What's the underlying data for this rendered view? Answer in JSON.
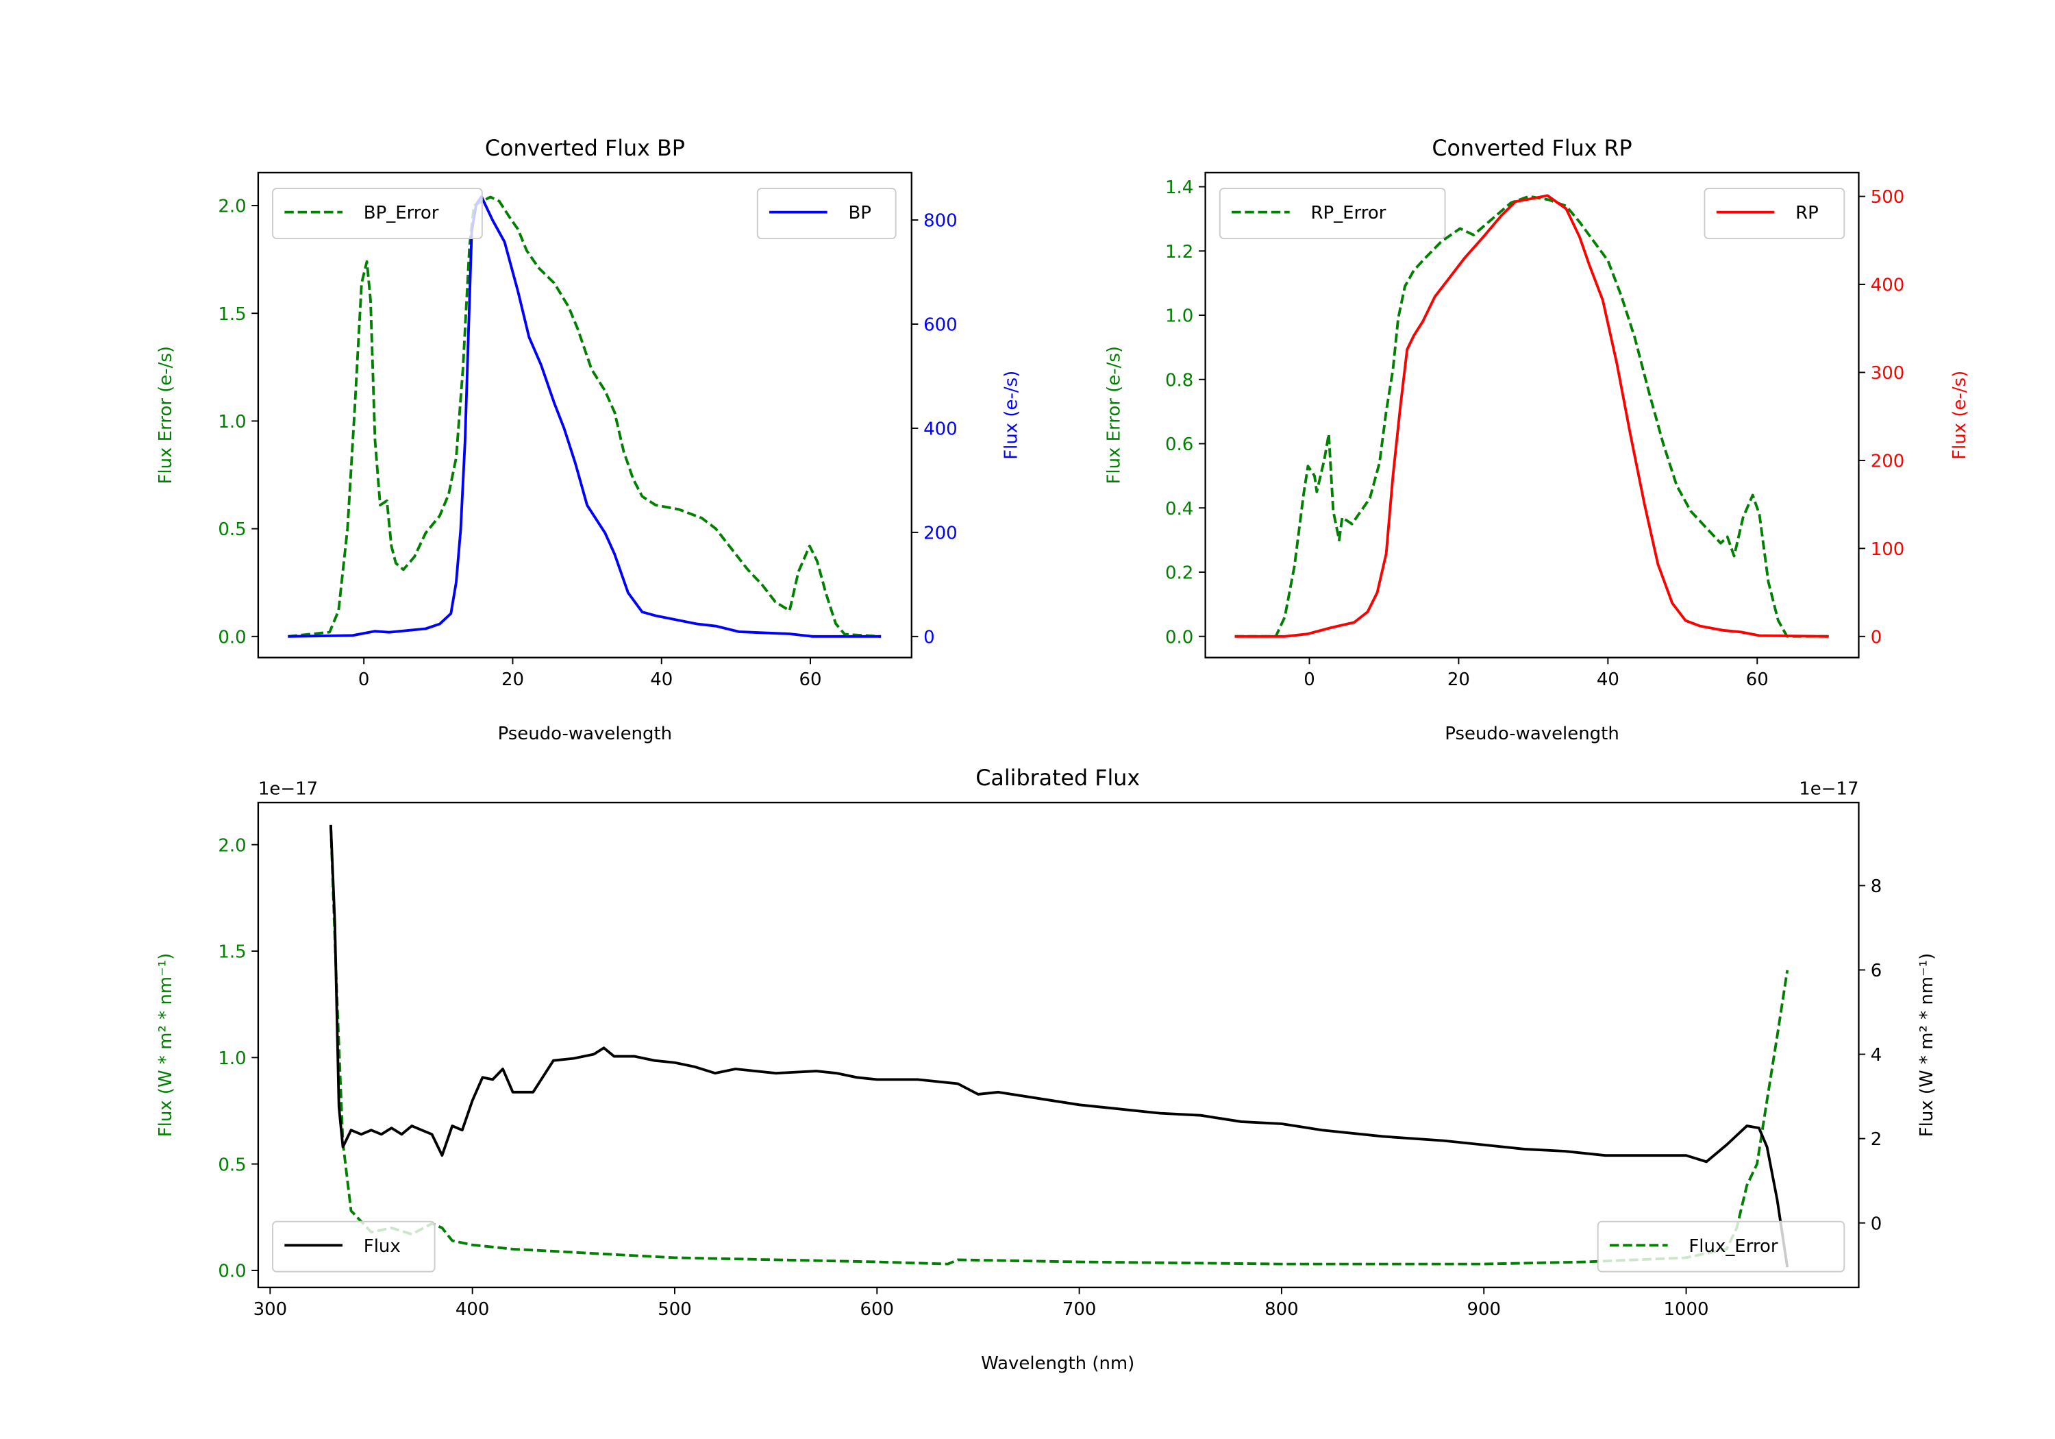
{
  "colors": {
    "green": "#008000",
    "blue": "#0000ff",
    "red": "#ff0000",
    "black": "#000000"
  },
  "chart_data": [
    {
      "id": "bp",
      "type": "line",
      "title": "Converted Flux BP",
      "xlabel": "Pseudo-wavelength",
      "ylabel_left": "Flux Error (e-/s)",
      "ylabel_right": "Flux (e-/s)",
      "xlim": [
        -14.2,
        73.6
      ],
      "ylim_left": [
        -0.098,
        2.153
      ],
      "ylim_right": [
        -40.5,
        891
      ],
      "xticks": [
        {
          "v": 0,
          "label": "0"
        },
        {
          "v": 20,
          "label": "20"
        },
        {
          "v": 40,
          "label": "40"
        },
        {
          "v": 60,
          "label": "60"
        }
      ],
      "yticks_left": [
        {
          "v": 0,
          "label": "0.0"
        },
        {
          "v": 0.5,
          "label": "0.5"
        },
        {
          "v": 1.0,
          "label": "1.0"
        },
        {
          "v": 1.5,
          "label": "1.5"
        },
        {
          "v": 2.0,
          "label": "2.0"
        }
      ],
      "yticks_right": [
        {
          "v": 0,
          "label": "0"
        },
        {
          "v": 200,
          "label": "200"
        },
        {
          "v": 400,
          "label": "400"
        },
        {
          "v": 600,
          "label": "600"
        },
        {
          "v": 800,
          "label": "800"
        }
      ],
      "left_color": "#008000",
      "right_color": "#0000ff",
      "legend_left": {
        "label": "BP_Error",
        "placement": "upper-left"
      },
      "legend_right": {
        "label": "BP",
        "placement": "upper-right"
      },
      "series": [
        {
          "name": "BP_Error",
          "axis": "left",
          "style": "dashed",
          "color": "#008000",
          "x": [
            -10.2,
            -4.6,
            -3.4,
            -2.2,
            -1.2,
            -0.3,
            0.4,
            0.9,
            1.5,
            2.2,
            3.1,
            3.7,
            4.3,
            5.3,
            6.8,
            8.3,
            10.2,
            11.4,
            12.4,
            13.3,
            14.2,
            14.8,
            17,
            18.2,
            19.5,
            20.7,
            21.9,
            23.5,
            25.6,
            27.5,
            28.7,
            30.6,
            32.4,
            33.7,
            34.9,
            36.2,
            37.4,
            39.2,
            42.3,
            45.4,
            47.3,
            49.1,
            51.6,
            53.5,
            55.3,
            57.2,
            58.4,
            59.9,
            60.9,
            62.1,
            63.4,
            64.6,
            69.5
          ],
          "y": [
            0,
            0.02,
            0.12,
            0.5,
            1.07,
            1.64,
            1.74,
            1.56,
            0.91,
            0.61,
            0.63,
            0.42,
            0.34,
            0.31,
            0.37,
            0.48,
            0.56,
            0.66,
            0.83,
            1.24,
            1.81,
            2.0,
            2.04,
            2.02,
            1.95,
            1.89,
            1.79,
            1.71,
            1.64,
            1.53,
            1.43,
            1.24,
            1.14,
            1.04,
            0.86,
            0.73,
            0.65,
            0.61,
            0.59,
            0.55,
            0.5,
            0.42,
            0.31,
            0.24,
            0.16,
            0.12,
            0.3,
            0.42,
            0.35,
            0.2,
            0.06,
            0.01,
            0
          ]
        },
        {
          "name": "BP",
          "axis": "right",
          "style": "solid",
          "color": "#0000ff",
          "x": [
            -10.2,
            -1.5,
            1.5,
            3.4,
            8.3,
            10.2,
            11.7,
            12.4,
            13,
            13.6,
            14.5,
            15.1,
            15.8,
            17.3,
            18.9,
            20.7,
            22.2,
            23.8,
            25.6,
            26.9,
            28.4,
            30,
            32.4,
            33.7,
            35.5,
            37.4,
            39.2,
            44.8,
            47.3,
            50.4,
            57.2,
            60.3,
            69.5
          ],
          "y": [
            0,
            2,
            10,
            8,
            15,
            24,
            44,
            104,
            205,
            374,
            778,
            830,
            845,
            800,
            758,
            663,
            575,
            522,
            448,
            400,
            333,
            252,
            199,
            158,
            84,
            47,
            40,
            24,
            20,
            9,
            5,
            0,
            0
          ]
        }
      ]
    },
    {
      "id": "rp",
      "type": "line",
      "title": "Converted Flux RP",
      "xlabel": "Pseudo-wavelength",
      "ylabel_left": "Flux Error (e-/s)",
      "ylabel_right": "Flux (e-/s)",
      "xlim": [
        -13.94,
        73.6
      ],
      "ylim_left": [
        -0.066,
        1.444
      ],
      "ylim_right": [
        -24,
        527
      ],
      "xticks": [
        {
          "v": 0,
          "label": "0"
        },
        {
          "v": 20,
          "label": "20"
        },
        {
          "v": 40,
          "label": "40"
        },
        {
          "v": 60,
          "label": "60"
        }
      ],
      "yticks_left": [
        {
          "v": 0,
          "label": "0.0"
        },
        {
          "v": 0.2,
          "label": "0.2"
        },
        {
          "v": 0.4,
          "label": "0.4"
        },
        {
          "v": 0.6,
          "label": "0.6"
        },
        {
          "v": 0.8,
          "label": "0.8"
        },
        {
          "v": 1.0,
          "label": "1.0"
        },
        {
          "v": 1.2,
          "label": "1.2"
        },
        {
          "v": 1.4,
          "label": "1.4"
        }
      ],
      "yticks_right": [
        {
          "v": 0,
          "label": "0"
        },
        {
          "v": 100,
          "label": "100"
        },
        {
          "v": 200,
          "label": "200"
        },
        {
          "v": 300,
          "label": "300"
        },
        {
          "v": 400,
          "label": "400"
        },
        {
          "v": 500,
          "label": "500"
        }
      ],
      "left_color": "#008000",
      "right_color": "#ff0000",
      "legend_left": {
        "label": "RP_Error",
        "placement": "upper-left"
      },
      "legend_right": {
        "label": "RP",
        "placement": "upper-right"
      },
      "series": [
        {
          "name": "RP_Error",
          "axis": "left",
          "style": "dashed",
          "color": "#008000",
          "x": [
            -10,
            -4.5,
            -3.3,
            -2,
            -0.8,
            -0.2,
            0.7,
            1.0,
            2,
            2.6,
            3.2,
            4,
            4.4,
            5.7,
            6.6,
            8.1,
            9.4,
            10.3,
            11.2,
            11.9,
            12.8,
            14,
            15.6,
            17.7,
            20.2,
            22,
            24.5,
            27,
            29.4,
            32,
            34.4,
            36.2,
            38.1,
            40,
            41.8,
            43.6,
            45.5,
            47.4,
            49.2,
            51.1,
            53.5,
            55.1,
            56,
            56.9,
            58.1,
            59.4,
            60.3,
            61.5,
            62.8,
            64,
            69.6
          ],
          "y": [
            0,
            0,
            0.06,
            0.22,
            0.44,
            0.53,
            0.5,
            0.45,
            0.55,
            0.63,
            0.39,
            0.3,
            0.37,
            0.35,
            0.38,
            0.43,
            0.54,
            0.7,
            0.83,
            0.99,
            1.09,
            1.14,
            1.18,
            1.23,
            1.27,
            1.25,
            1.3,
            1.35,
            1.37,
            1.36,
            1.34,
            1.29,
            1.23,
            1.17,
            1.06,
            0.93,
            0.76,
            0.6,
            0.47,
            0.39,
            0.33,
            0.29,
            0.31,
            0.25,
            0.37,
            0.44,
            0.38,
            0.17,
            0.05,
            0,
            0
          ]
        },
        {
          "name": "RP",
          "axis": "right",
          "style": "solid",
          "color": "#ff0000",
          "x": [
            -10,
            -3.3,
            -0.2,
            2.9,
            6,
            7.8,
            9.1,
            10.3,
            11.2,
            12.2,
            13.1,
            14,
            15.2,
            16.8,
            19,
            20.8,
            23.3,
            25.7,
            27.6,
            30.1,
            31.9,
            34.4,
            36.2,
            37.5,
            39.3,
            41.2,
            43,
            44.9,
            46.7,
            48.6,
            50.4,
            52.3,
            55.4,
            57.8,
            60.3,
            69.6
          ],
          "y": [
            0,
            0,
            3,
            10,
            16,
            28,
            50,
            94,
            182,
            262,
            326,
            342,
            358,
            386,
            410,
            430,
            454,
            478,
            494,
            498,
            501,
            486,
            454,
            422,
            382,
            310,
            230,
            150,
            82,
            38,
            18,
            12,
            7,
            5,
            1,
            0
          ]
        }
      ]
    },
    {
      "id": "cal",
      "type": "line",
      "title": "Calibrated Flux",
      "xlabel": "Wavelength (nm)",
      "ylabel_left": "Flux (W * m² * nm⁻¹)",
      "ylabel_right": "Flux (W * m² * nm⁻¹)",
      "offset_left": "1e−17",
      "offset_right": "1e−17",
      "xlim": [
        294.1,
        1085.3
      ],
      "ylim_left": [
        -0.08,
        2.198
      ],
      "ylim_right": [
        -1.53,
        9.97
      ],
      "xticks": [
        {
          "v": 300,
          "label": "300"
        },
        {
          "v": 400,
          "label": "400"
        },
        {
          "v": 500,
          "label": "500"
        },
        {
          "v": 600,
          "label": "600"
        },
        {
          "v": 700,
          "label": "700"
        },
        {
          "v": 800,
          "label": "800"
        },
        {
          "v": 900,
          "label": "900"
        },
        {
          "v": 1000,
          "label": "1000"
        }
      ],
      "yticks_left": [
        {
          "v": 0,
          "label": "0.0"
        },
        {
          "v": 0.5,
          "label": "0.5"
        },
        {
          "v": 1.0,
          "label": "1.0"
        },
        {
          "v": 1.5,
          "label": "1.5"
        },
        {
          "v": 2.0,
          "label": "2.0"
        }
      ],
      "yticks_right": [
        {
          "v": 0,
          "label": "0"
        },
        {
          "v": 2,
          "label": "2"
        },
        {
          "v": 4,
          "label": "4"
        },
        {
          "v": 6,
          "label": "6"
        },
        {
          "v": 8,
          "label": "8"
        }
      ],
      "left_color": "#008000",
      "right_color": "#000000",
      "legend_left": {
        "label": "Flux",
        "placement": "lower-left"
      },
      "legend_right": {
        "label": "Flux_Error",
        "placement": "lower-right"
      },
      "series": [
        {
          "name": "Flux_Error",
          "axis": "left",
          "style": "dashed",
          "color": "#008000",
          "x": [
            330,
            333,
            336,
            340,
            350,
            360,
            370,
            380,
            385,
            390,
            400,
            420,
            440,
            460,
            500,
            550,
            600,
            635,
            640,
            700,
            800,
            900,
            950,
            1000,
            1020,
            1025,
            1030,
            1035,
            1040,
            1045,
            1050
          ],
          "y": [
            2.09,
            1.3,
            0.6,
            0.28,
            0.18,
            0.2,
            0.17,
            0.22,
            0.2,
            0.14,
            0.12,
            0.1,
            0.09,
            0.08,
            0.06,
            0.05,
            0.04,
            0.03,
            0.05,
            0.04,
            0.03,
            0.03,
            0.04,
            0.06,
            0.1,
            0.2,
            0.4,
            0.5,
            0.8,
            1.1,
            1.41
          ]
        },
        {
          "name": "Flux",
          "axis": "right",
          "style": "solid",
          "color": "#000000",
          "x": [
            330,
            332,
            334,
            336,
            340,
            345,
            350,
            355,
            360,
            365,
            370,
            375,
            380,
            385,
            390,
            395,
            400,
            405,
            410,
            415,
            420,
            425,
            430,
            440,
            450,
            460,
            465,
            470,
            480,
            490,
            500,
            510,
            520,
            530,
            550,
            570,
            580,
            590,
            600,
            620,
            640,
            650,
            660,
            680,
            700,
            720,
            740,
            760,
            780,
            800,
            820,
            850,
            880,
            900,
            920,
            940,
            960,
            980,
            1000,
            1010,
            1020,
            1030,
            1036,
            1040,
            1045,
            1050
          ],
          "y": [
            9.44,
            7.1,
            2.75,
            1.8,
            2.2,
            2.1,
            2.2,
            2.1,
            2.25,
            2.1,
            2.3,
            2.2,
            2.1,
            1.6,
            2.3,
            2.2,
            2.9,
            3.45,
            3.4,
            3.65,
            3.1,
            3.1,
            3.1,
            3.85,
            3.9,
            4.0,
            4.15,
            3.95,
            3.95,
            3.85,
            3.8,
            3.7,
            3.55,
            3.65,
            3.55,
            3.6,
            3.55,
            3.45,
            3.4,
            3.4,
            3.3,
            3.05,
            3.1,
            2.95,
            2.8,
            2.7,
            2.6,
            2.55,
            2.4,
            2.35,
            2.2,
            2.05,
            1.95,
            1.85,
            1.75,
            1.7,
            1.6,
            1.6,
            1.6,
            1.45,
            1.85,
            2.3,
            2.25,
            1.8,
            0.55,
            -1.05
          ]
        }
      ]
    }
  ]
}
